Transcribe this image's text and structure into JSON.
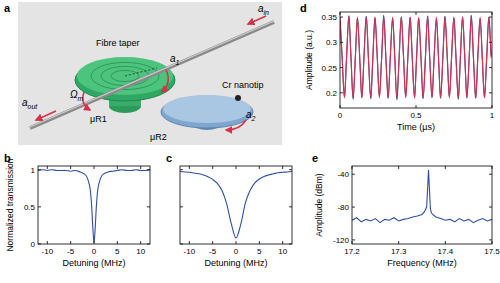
{
  "chart_data": [
    {
      "type": "line",
      "title": "b",
      "x_label": "Detuning (MHz)",
      "y_label": "Normalized transmission",
      "x": [
        -12,
        -11,
        -10,
        -9,
        -8,
        -7,
        -6,
        -5,
        -4,
        -3,
        -2,
        -1.5,
        -1,
        -0.75,
        -0.5,
        -0.25,
        0,
        0.25,
        0.5,
        0.75,
        1,
        1.5,
        2,
        3,
        4,
        5,
        6,
        7,
        8,
        9,
        10,
        11,
        12
      ],
      "series": [
        {
          "color": "#2f4f9e",
          "values": [
            0.99,
            1.0,
            0.99,
            1.0,
            0.99,
            0.99,
            0.99,
            0.98,
            0.99,
            0.97,
            0.94,
            0.9,
            0.8,
            0.7,
            0.51,
            0.22,
            0.02,
            0.21,
            0.5,
            0.7,
            0.8,
            0.9,
            0.94,
            0.97,
            0.98,
            0.99,
            1.0,
            0.99,
            0.99,
            1.0,
            0.99,
            0.99,
            1.0
          ]
        }
      ],
      "xlim": [
        -12,
        12
      ],
      "xticks": [
        -10,
        -5,
        0,
        5,
        10
      ],
      "ylim": [
        0,
        1.05
      ],
      "yticks": [
        0,
        0.5,
        1
      ],
      "grid": false
    },
    {
      "type": "line",
      "title": "c",
      "x_label": "Detuning (MHz)",
      "x": [
        -12,
        -11,
        -10,
        -9,
        -8,
        -7,
        -6,
        -5,
        -4,
        -3,
        -2,
        -1,
        0,
        1,
        2,
        3,
        4,
        5,
        6,
        7,
        8,
        9,
        10,
        11,
        12
      ],
      "series": [
        {
          "color": "#2f4f9e",
          "values": [
            0.975,
            0.97,
            0.965,
            0.955,
            0.945,
            0.93,
            0.905,
            0.87,
            0.815,
            0.72,
            0.54,
            0.27,
            0.08,
            0.26,
            0.55,
            0.72,
            0.82,
            0.875,
            0.91,
            0.93,
            0.945,
            0.96,
            0.965,
            0.97,
            0.975
          ]
        }
      ],
      "xlim": [
        -12,
        12
      ],
      "xticks": [
        -10,
        -5,
        0,
        5,
        10
      ],
      "ylim": [
        0,
        1.05
      ],
      "yticks": [
        0,
        0.5,
        1
      ],
      "grid": false,
      "tick_labels": "x"
    },
    {
      "type": "line",
      "title": "d",
      "x_label": "Time (µs)",
      "y_label": "Amplitude (a.u.)",
      "x": [
        0,
        0.014,
        0.029,
        0.043,
        0.058,
        0.072,
        0.086,
        0.101,
        0.115,
        0.13,
        0.144,
        0.158,
        0.173,
        0.187,
        0.202,
        0.216,
        0.23,
        0.245,
        0.259,
        0.274,
        0.288,
        0.302,
        0.317,
        0.331,
        0.346,
        0.36,
        0.374,
        0.389,
        0.403,
        0.418,
        0.432,
        0.446,
        0.461,
        0.475,
        0.49,
        0.504,
        0.518,
        0.533,
        0.547,
        0.562,
        0.576,
        0.59,
        0.605,
        0.619,
        0.634,
        0.648,
        0.662,
        0.677,
        0.691,
        0.706,
        0.72,
        0.734,
        0.749,
        0.763,
        0.778,
        0.792,
        0.806,
        0.821,
        0.835,
        0.85,
        0.864,
        0.878,
        0.893,
        0.907,
        0.922,
        0.936,
        0.95,
        0.965,
        0.979,
        0.994
      ],
      "series": [
        {
          "color": "#2f4f9e",
          "values": [
            0.345,
            0.272,
            0.193,
            0.268,
            0.352,
            0.274,
            0.188,
            0.271,
            0.347,
            0.266,
            0.192,
            0.275,
            0.351,
            0.27,
            0.189,
            0.267,
            0.348,
            0.273,
            0.194,
            0.27,
            0.353,
            0.268,
            0.19,
            0.272,
            0.346,
            0.275,
            0.187,
            0.269,
            0.35,
            0.271,
            0.193,
            0.266,
            0.349,
            0.274,
            0.191,
            0.273,
            0.347,
            0.267,
            0.189,
            0.27,
            0.352,
            0.272,
            0.192,
            0.268,
            0.345,
            0.27,
            0.19,
            0.274,
            0.351,
            0.266,
            0.193,
            0.271,
            0.348,
            0.273,
            0.188,
            0.269,
            0.35,
            0.27,
            0.191,
            0.272,
            0.353,
            0.268,
            0.19,
            0.275,
            0.346,
            0.271,
            0.192,
            0.267,
            0.349,
            0.274
          ]
        },
        {
          "color": "#d9304a",
          "values": [
            0.35,
            0.27,
            0.19,
            0.27,
            0.35,
            0.27,
            0.19,
            0.27,
            0.35,
            0.27,
            0.19,
            0.27,
            0.35,
            0.27,
            0.19,
            0.27,
            0.35,
            0.27,
            0.19,
            0.27,
            0.35,
            0.27,
            0.19,
            0.27,
            0.35,
            0.27,
            0.19,
            0.27,
            0.35,
            0.27,
            0.19,
            0.27,
            0.35,
            0.27,
            0.19,
            0.27,
            0.35,
            0.27,
            0.19,
            0.27,
            0.35,
            0.27,
            0.19,
            0.27,
            0.35,
            0.27,
            0.19,
            0.27,
            0.35,
            0.27,
            0.19,
            0.27,
            0.35,
            0.27,
            0.19,
            0.27,
            0.35,
            0.27,
            0.19,
            0.27,
            0.35,
            0.27,
            0.19,
            0.27,
            0.35,
            0.27,
            0.19,
            0.27,
            0.35,
            0.27
          ]
        }
      ],
      "xlim": [
        0,
        1
      ],
      "xticks": [
        0,
        0.5,
        1
      ],
      "ylim": [
        0.17,
        0.36
      ],
      "yticks": [
        0.2,
        0.25,
        0.3,
        0.35
      ],
      "grid": false
    },
    {
      "type": "line",
      "title": "e",
      "x_label": "Frequency (MHz)",
      "y_label": "Amplitude (dBm)",
      "x": [
        17.2,
        17.21,
        17.22,
        17.23,
        17.24,
        17.25,
        17.26,
        17.27,
        17.28,
        17.29,
        17.3,
        17.31,
        17.32,
        17.33,
        17.34,
        17.35,
        17.355,
        17.36,
        17.364,
        17.368,
        17.37,
        17.375,
        17.38,
        17.39,
        17.4,
        17.41,
        17.42,
        17.43,
        17.44,
        17.45,
        17.46,
        17.47,
        17.48,
        17.49,
        17.5
      ],
      "series": [
        {
          "color": "#2f4f9e",
          "values": [
            -96,
            -93,
            -98,
            -95,
            -97,
            -94,
            -99,
            -95,
            -96,
            -93,
            -97,
            -95,
            -94,
            -92,
            -91,
            -89,
            -86,
            -80,
            -35,
            -82,
            -87,
            -90,
            -92,
            -94,
            -96,
            -95,
            -98,
            -94,
            -97,
            -95,
            -99,
            -96,
            -94,
            -97,
            -95
          ]
        }
      ],
      "xlim": [
        17.2,
        17.5
      ],
      "xticks": [
        17.2,
        17.3,
        17.4,
        17.5
      ],
      "ylim": [
        -125,
        -30
      ],
      "yticks": [
        -120,
        -80,
        -40
      ],
      "grid": false
    }
  ],
  "diagram": {
    "title": "a",
    "fibre": "Fibre taper",
    "a_in": {
      "base": "a",
      "sub": "in"
    },
    "a_out": {
      "base": "a",
      "sub": "out"
    },
    "a1": {
      "base": "a",
      "sub": "1"
    },
    "a2": {
      "base": "a",
      "sub": "2"
    },
    "omega": {
      "base": "Ω",
      "sub": "m"
    },
    "r1": "μR1",
    "r2": "μR2",
    "tip": "Cr nanotip"
  }
}
